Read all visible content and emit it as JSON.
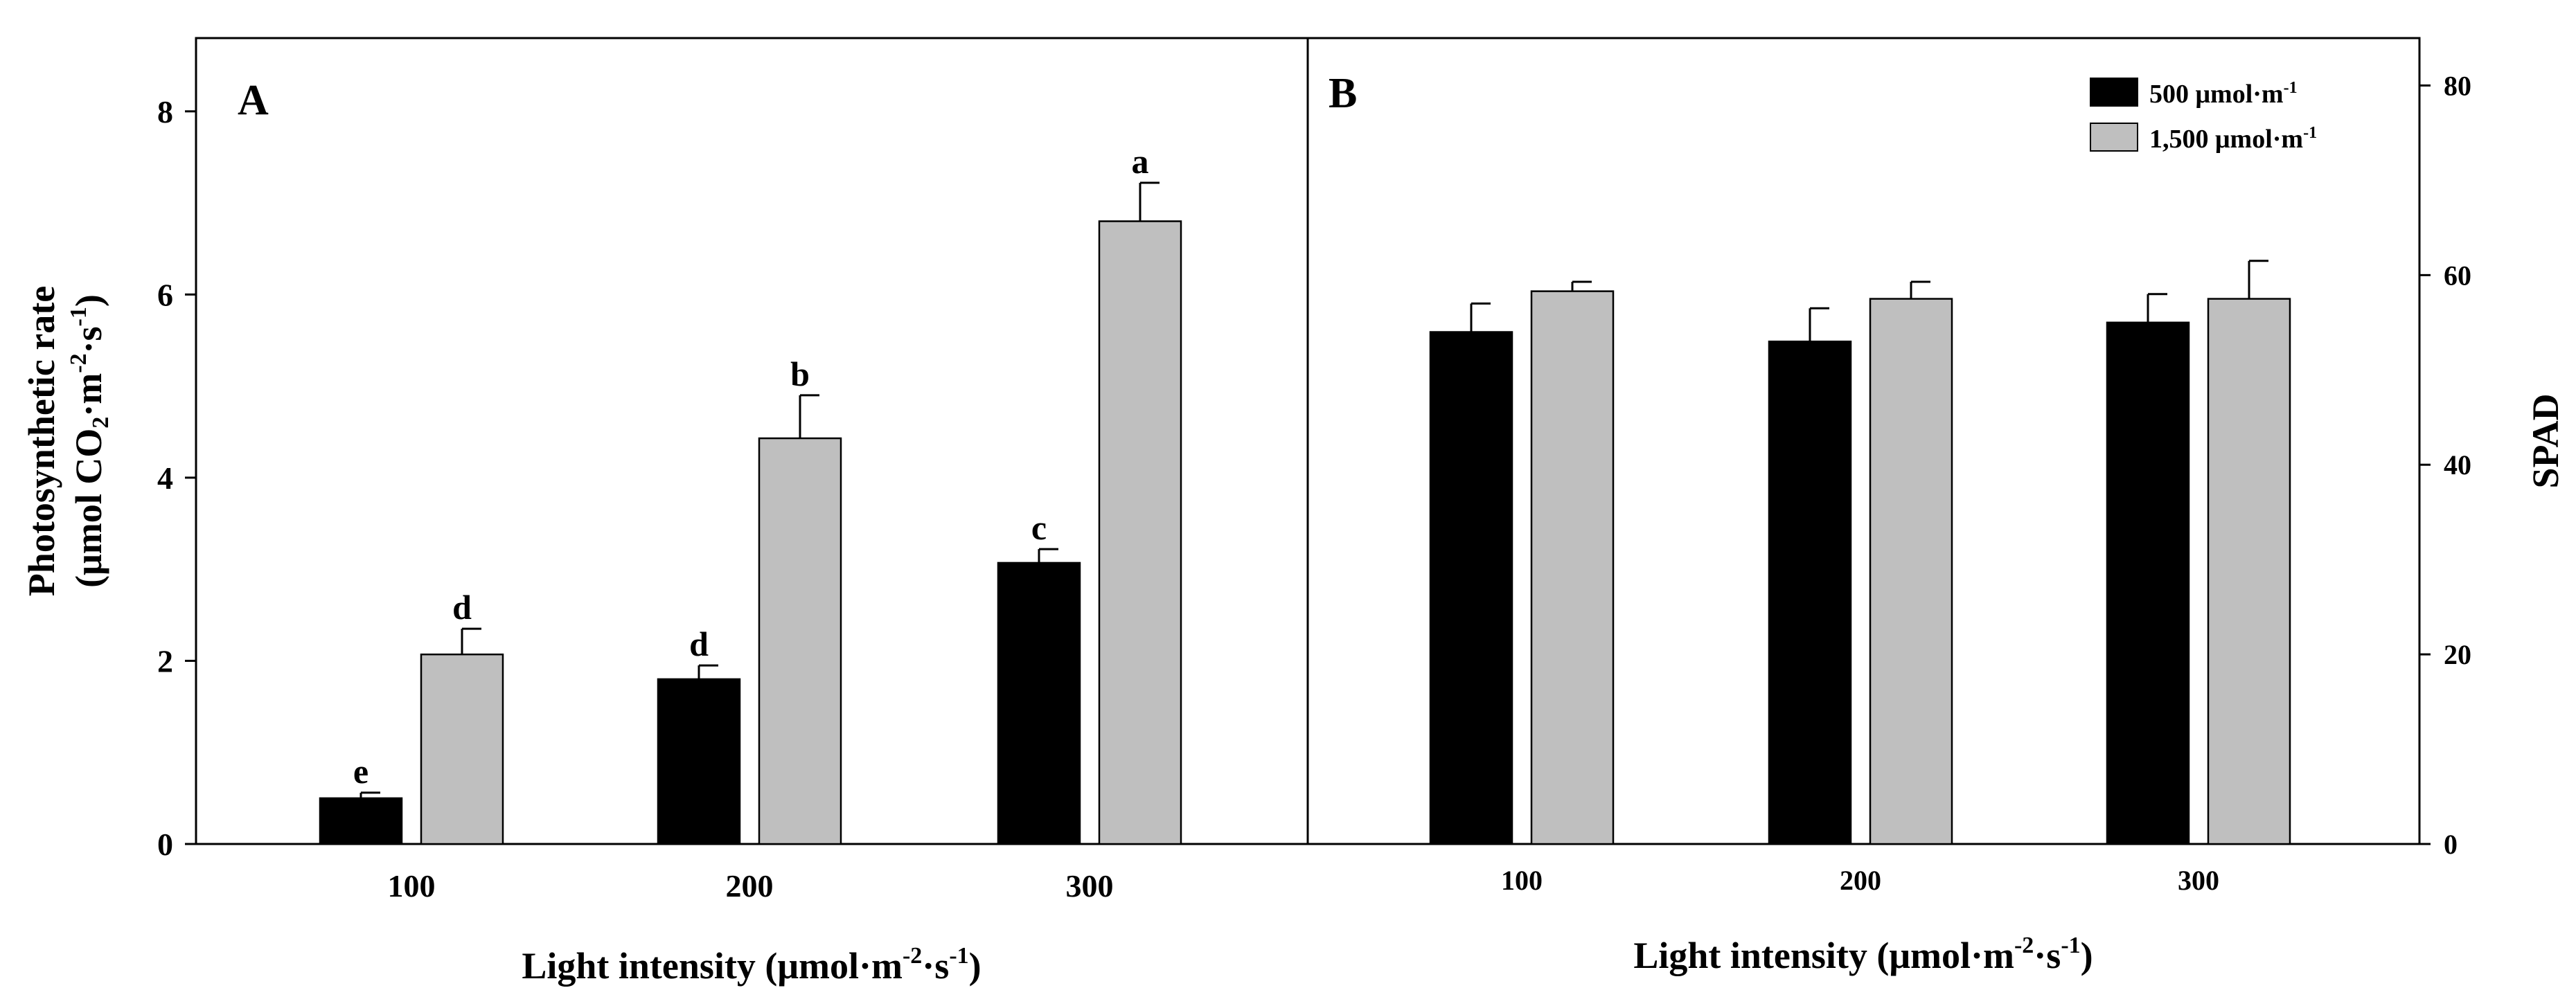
{
  "colors": {
    "series_500": "#000000",
    "series_1500": "#bfbfbf",
    "axis": "#000000",
    "background": "#ffffff"
  },
  "legend": {
    "placement": "top-right",
    "items": [
      {
        "label": "500 μmol·m",
        "sup": "-1",
        "color": "#000000"
      },
      {
        "label": "1,500 μmol·m",
        "sup": "-1",
        "color": "#bfbfbf"
      }
    ]
  },
  "chart_data": [
    {
      "panel": "A",
      "type": "bar",
      "panel_label": "A",
      "categories": [
        "100",
        "200",
        "300"
      ],
      "ylabel_line1": "Photosynthetic rate",
      "ylabel_line2_parts": [
        "(μmol CO",
        "2",
        "·m",
        "-2",
        "·s",
        "-1",
        ")"
      ],
      "xlabel_parts": [
        "Light intensity (μmol·m",
        "-2",
        "·s",
        "-1",
        ")"
      ],
      "ylim": [
        0,
        8.8
      ],
      "yticks": [
        0,
        2,
        4,
        6,
        8
      ],
      "ytick_labels": [
        "0",
        "2",
        "4",
        "6",
        "8"
      ],
      "series": [
        {
          "name": "500 μmol·m-1",
          "values": [
            0.5,
            1.8,
            3.07
          ],
          "errors": [
            0.06,
            0.15,
            0.15
          ],
          "letters": [
            "e",
            "d",
            "c"
          ]
        },
        {
          "name": "1,500 μmol·m-1",
          "values": [
            2.07,
            4.43,
            6.8
          ],
          "errors": [
            0.28,
            0.47,
            0.42
          ],
          "letters": [
            "d",
            "b",
            "a"
          ]
        }
      ]
    },
    {
      "panel": "B",
      "type": "bar",
      "panel_label": "B",
      "categories": [
        "100",
        "200",
        "300"
      ],
      "ylabel": "SPAD",
      "xlabel_parts": [
        "Light intensity (μmol·m",
        "-2",
        "·s",
        "-1",
        ")"
      ],
      "ylim": [
        0,
        85
      ],
      "yticks": [
        0,
        20,
        40,
        60,
        80
      ],
      "ytick_labels": [
        "0",
        "20",
        "40",
        "60",
        "80"
      ],
      "series": [
        {
          "name": "500 μmol·m-1",
          "values": [
            54,
            53,
            55
          ],
          "errors": [
            3,
            3.5,
            3
          ]
        },
        {
          "name": "1,500 μmol·m-1",
          "values": [
            58.3,
            57.5,
            57.5
          ],
          "errors": [
            1,
            1.8,
            4
          ]
        }
      ]
    }
  ]
}
